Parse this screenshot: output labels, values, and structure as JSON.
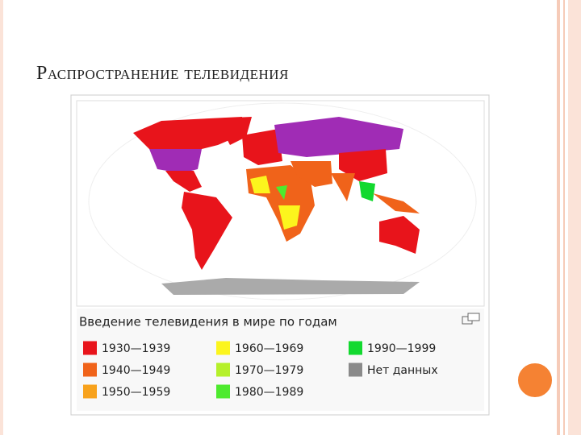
{
  "header": {
    "title": "Распространение телевидения"
  },
  "legend": {
    "caption": "Введение телевидения в мире по годам",
    "items": [
      {
        "label": "1930—1939",
        "color": "#e8141b"
      },
      {
        "label": "1940—1949",
        "color": "#f0631a"
      },
      {
        "label": "1950—1959",
        "color": "#f8a21c"
      },
      {
        "label": "1960—1969",
        "color": "#fcf51d"
      },
      {
        "label": "1970—1979",
        "color": "#b5f02a"
      },
      {
        "label": "1980—1989",
        "color": "#4eea2e"
      },
      {
        "label": "1990—1999",
        "color": "#12d92f"
      },
      {
        "label": "Нет данных",
        "color": "#8a8a8a"
      }
    ]
  }
}
